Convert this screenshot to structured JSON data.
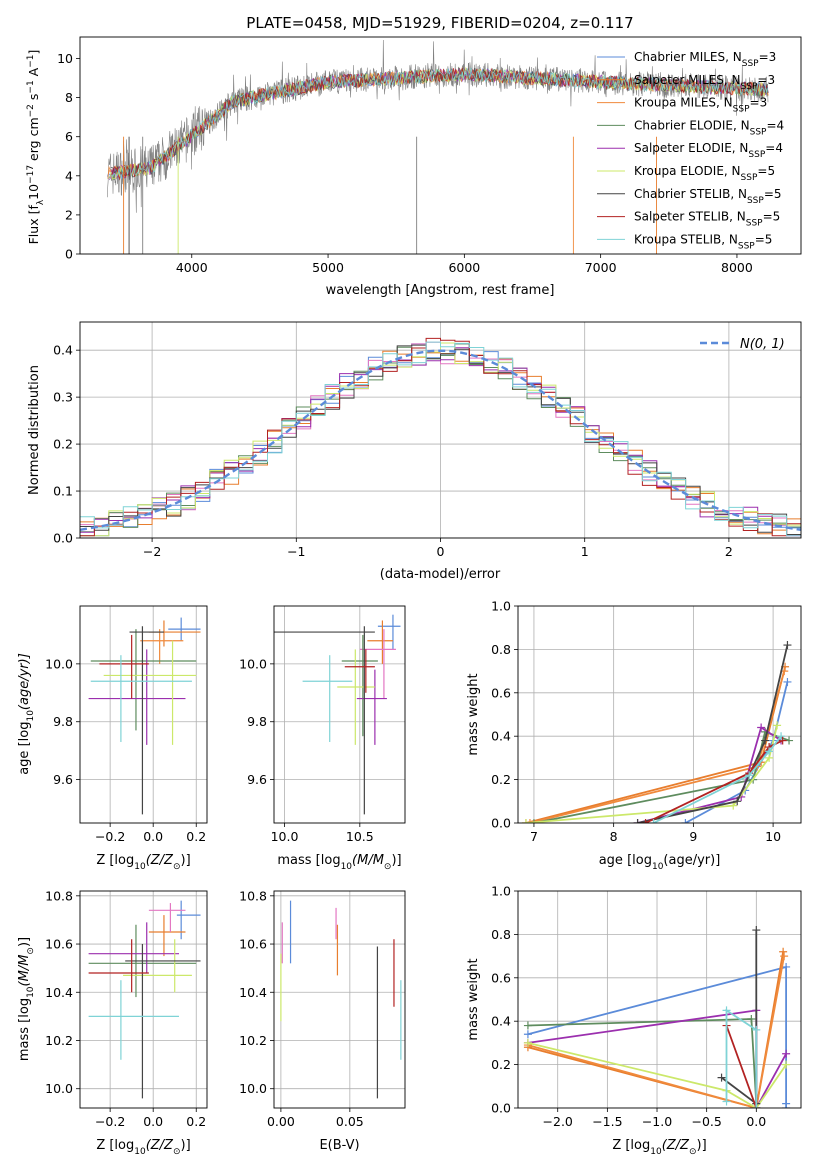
{
  "colors": {
    "c_mil": "#5b8bd9",
    "s_mil": "#e87e2e",
    "k_mil": "#f08a3c",
    "c_eld": "#5e8c5e",
    "s_eld": "#9b2fae",
    "k_eld": "#cce86a",
    "c_ste": "#444444",
    "s_ste": "#b22222",
    "k_ste": "#7fd3d6",
    "pink": "#e377c2",
    "grey": "#808080"
  },
  "chart_data": [
    {
      "id": "spectrum",
      "type": "line",
      "title": "PLATE=0458, MJD=51929, FIBERID=0204, z=0.117",
      "xlabel": "wavelength [Angstrom, rest frame]",
      "ylabel_main": "Flux [f",
      "ylabel_sub1": "λ",
      "ylabel_mid": "10",
      "ylabel_sup1": "−17",
      "ylabel_rest": " erg cm",
      "ylabel_sup2": "−2",
      "ylabel_s": " s",
      "ylabel_sup3": "−1",
      "ylabel_a": " A",
      "ylabel_sup4": "−1",
      "ylabel_end": "]",
      "xlim": [
        3180,
        8470
      ],
      "ylim": [
        0,
        11.1
      ],
      "xticks": [
        4000,
        5000,
        6000,
        7000,
        8000
      ],
      "yticks": [
        0,
        2,
        4,
        6,
        8,
        10
      ],
      "x_range": [
        3380,
        8230
      ],
      "legend": [
        {
          "label": "Chabrier MILES, N",
          "sub": "SSP",
          "tail": "=3",
          "color_key": "c_mil"
        },
        {
          "label": "Salpeter MILES, N",
          "sub": "SSP",
          "tail": "=3",
          "color_key": "s_mil"
        },
        {
          "label": "Kroupa MILES, N",
          "sub": "SSP",
          "tail": "=3",
          "color_key": "k_mil"
        },
        {
          "label": "Chabrier ELODIE, N",
          "sub": "SSP",
          "tail": "=4",
          "color_key": "c_eld"
        },
        {
          "label": "Salpeter ELODIE, N",
          "sub": "SSP",
          "tail": "=4",
          "color_key": "s_eld"
        },
        {
          "label": "Kroupa ELODIE, N",
          "sub": "SSP",
          "tail": "=5",
          "color_key": "k_eld"
        },
        {
          "label": "Chabrier STELIB, N",
          "sub": "SSP",
          "tail": "=5",
          "color_key": "c_ste"
        },
        {
          "label": "Salpeter STELIB, N",
          "sub": "SSP",
          "tail": "=5",
          "color_key": "s_ste"
        },
        {
          "label": "Kroupa STELIB, N",
          "sub": "SSP",
          "tail": "=5",
          "color_key": "k_ste"
        }
      ]
    },
    {
      "id": "residuals",
      "type": "line",
      "xlabel": "(data-model)/error",
      "ylabel": "Normed distribution",
      "xlim": [
        -2.5,
        2.5
      ],
      "ylim": [
        0,
        0.46
      ],
      "xticks": [
        -2,
        -1,
        0,
        1,
        2
      ],
      "xtick_labels": [
        "−2",
        "−1",
        "0",
        "1",
        "2"
      ],
      "yticks": [
        0.0,
        0.1,
        0.2,
        0.3,
        0.4
      ],
      "ytick_labels": [
        "0.0",
        "0.1",
        "0.2",
        "0.3",
        "0.4"
      ],
      "grid": true,
      "bin_width": 0.1,
      "legend_label": "N(0, 1)",
      "legend_position": "top-right"
    },
    {
      "id": "z_age",
      "type": "scatter",
      "xlabel_main": "Z [log",
      "xlabel_sub": "10",
      "xlabel_mid": "(Z/Z",
      "xlabel_sub2": "⊙",
      "xlabel_end": ")]",
      "ylabel_main": "age  [log",
      "ylabel_sub": "10",
      "ylabel_end": "(age/yr)]",
      "xlim": [
        -0.34,
        0.25
      ],
      "ylim": [
        9.45,
        10.2
      ],
      "xticks": [
        -0.2,
        0.0,
        0.2
      ],
      "xtick_labels": [
        "−0.2",
        "0.0",
        "0.2"
      ],
      "yticks": [
        9.6,
        9.8,
        10.0
      ],
      "ytick_labels": [
        "9.6",
        "9.8",
        "10.0"
      ],
      "grid": true,
      "points": [
        {
          "x": 0.13,
          "xe": [
            0.07,
            0.22
          ],
          "y": 10.12,
          "ye": [
            10.08,
            10.16
          ],
          "color_key": "c_mil"
        },
        {
          "x": 0.05,
          "xe": [
            -0.02,
            0.22
          ],
          "y": 10.11,
          "ye": [
            10.06,
            10.15
          ],
          "color_key": "s_mil"
        },
        {
          "x": 0.03,
          "xe": [
            -0.06,
            0.14
          ],
          "y": 10.08,
          "ye": [
            10.0,
            10.12
          ],
          "color_key": "k_mil"
        },
        {
          "x": -0.08,
          "xe": [
            -0.29,
            0.2
          ],
          "y": 10.01,
          "ye": [
            9.77,
            10.12
          ],
          "color_key": "c_eld"
        },
        {
          "x": -0.03,
          "xe": [
            -0.3,
            0.15
          ],
          "y": 9.88,
          "ye": [
            9.72,
            10.05
          ],
          "color_key": "s_eld"
        },
        {
          "x": 0.09,
          "xe": [
            -0.23,
            0.2
          ],
          "y": 9.96,
          "ye": [
            9.72,
            10.08
          ],
          "color_key": "k_eld"
        },
        {
          "x": -0.05,
          "xe": [
            -0.11,
            0.05
          ],
          "y": 10.11,
          "ye": [
            9.48,
            10.13
          ],
          "color_key": "c_ste"
        },
        {
          "x": -0.1,
          "xe": [
            -0.25,
            -0.02
          ],
          "y": 10.0,
          "ye": [
            9.88,
            10.1
          ],
          "color_key": "s_ste"
        },
        {
          "x": -0.15,
          "xe": [
            -0.29,
            0.18
          ],
          "y": 9.94,
          "ye": [
            9.73,
            10.03
          ],
          "color_key": "k_ste"
        }
      ]
    },
    {
      "id": "mass_age",
      "type": "scatter",
      "xlabel_main": "mass [log",
      "xlabel_sub": "10",
      "xlabel_mid": "(M/M",
      "xlabel_sub2": "⊙",
      "xlabel_end": ")]",
      "xlim": [
        9.93,
        10.8
      ],
      "ylim": [
        9.45,
        10.2
      ],
      "xticks": [
        10.0,
        10.5
      ],
      "xtick_labels": [
        "10.0",
        "10.5"
      ],
      "yticks": [
        9.6,
        9.8,
        10.0
      ],
      "ytick_labels": [
        "9.6",
        "9.8",
        "10.0"
      ],
      "grid": true,
      "points": [
        {
          "x": 10.72,
          "xe": [
            10.62,
            10.77
          ],
          "y": 10.13,
          "ye": [
            10.05,
            10.17
          ],
          "color_key": "c_mil"
        },
        {
          "x": 10.65,
          "xe": [
            10.55,
            10.72
          ],
          "y": 10.08,
          "ye": [
            10.0,
            10.15
          ],
          "color_key": "s_mil"
        },
        {
          "x": 10.66,
          "xe": [
            10.5,
            10.74
          ],
          "y": 10.05,
          "ye": [
            9.88,
            10.12
          ],
          "color_key": "pink"
        },
        {
          "x": 10.52,
          "xe": [
            10.38,
            10.62
          ],
          "y": 10.01,
          "ye": [
            9.75,
            10.1
          ],
          "color_key": "c_eld"
        },
        {
          "x": 10.6,
          "xe": [
            10.48,
            10.68
          ],
          "y": 9.88,
          "ye": [
            9.72,
            9.98
          ],
          "color_key": "s_eld"
        },
        {
          "x": 10.47,
          "xe": [
            10.35,
            10.6
          ],
          "y": 9.92,
          "ye": [
            9.72,
            10.05
          ],
          "color_key": "k_eld"
        },
        {
          "x": 10.53,
          "xe": [
            9.93,
            10.6
          ],
          "y": 10.11,
          "ye": [
            9.48,
            10.13
          ],
          "color_key": "c_ste"
        },
        {
          "x": 10.54,
          "xe": [
            10.4,
            10.6
          ],
          "y": 9.99,
          "ye": [
            9.9,
            10.05
          ],
          "color_key": "s_ste"
        },
        {
          "x": 10.3,
          "xe": [
            10.12,
            10.45
          ],
          "y": 9.94,
          "ye": [
            9.73,
            10.03
          ],
          "color_key": "k_ste"
        }
      ]
    },
    {
      "id": "age_weight",
      "type": "line",
      "xlabel_main": "age  [log",
      "xlabel_sub": "10",
      "xlabel_end": "(age/yr)]",
      "ylabel": "mass weight",
      "xlim": [
        6.8,
        10.35
      ],
      "ylim": [
        0,
        1.0
      ],
      "xticks": [
        7,
        8,
        9,
        10
      ],
      "xtick_labels": [
        "7",
        "8",
        "9",
        "10"
      ],
      "yticks": [
        0.0,
        0.2,
        0.4,
        0.6,
        0.8,
        1.0
      ],
      "ytick_labels": [
        "0.0",
        "0.2",
        "0.4",
        "0.6",
        "0.8",
        "1.0"
      ],
      "grid": true,
      "series": [
        {
          "color_key": "c_mil",
          "x": [
            8.9,
            9.65,
            10.0,
            10.18
          ],
          "y": [
            0.0,
            0.15,
            0.38,
            0.65
          ]
        },
        {
          "color_key": "s_mil",
          "x": [
            6.9,
            9.85,
            10.15
          ],
          "y": [
            0.0,
            0.28,
            0.72
          ]
        },
        {
          "color_key": "k_mil",
          "x": [
            6.95,
            9.8,
            10.14
          ],
          "y": [
            0.0,
            0.26,
            0.7
          ]
        },
        {
          "color_key": "c_eld",
          "x": [
            7.0,
            9.75,
            9.9,
            10.2
          ],
          "y": [
            0.0,
            0.2,
            0.42,
            0.38
          ]
        },
        {
          "color_key": "s_eld",
          "x": [
            8.3,
            9.6,
            9.85,
            10.1
          ],
          "y": [
            0.0,
            0.12,
            0.44,
            0.38
          ]
        },
        {
          "color_key": "k_eld",
          "x": [
            6.9,
            9.5,
            9.95,
            10.05
          ],
          "y": [
            0.0,
            0.08,
            0.3,
            0.45
          ]
        },
        {
          "color_key": "c_ste",
          "x": [
            8.3,
            9.55,
            9.9,
            10.18
          ],
          "y": [
            0.0,
            0.1,
            0.38,
            0.82
          ]
        },
        {
          "color_key": "s_ste",
          "x": [
            8.4,
            9.7,
            9.95,
            10.12
          ],
          "y": [
            0.0,
            0.23,
            0.35,
            0.38
          ]
        },
        {
          "color_key": "k_ste",
          "x": [
            8.5,
            9.7,
            9.95,
            10.1
          ],
          "y": [
            0.0,
            0.22,
            0.33,
            0.4
          ]
        }
      ]
    },
    {
      "id": "z_mass",
      "type": "scatter",
      "xlabel_main": "Z [log",
      "xlabel_sub": "10",
      "xlabel_mid": "(Z/Z",
      "xlabel_sub2": "⊙",
      "xlabel_end": ")]",
      "ylabel_main": "mass [log",
      "ylabel_sub": "10",
      "ylabel_mid": "(M/M",
      "ylabel_sub2": "⊙",
      "ylabel_end": ")]",
      "xlim": [
        -0.34,
        0.25
      ],
      "ylim": [
        9.92,
        10.82
      ],
      "xticks": [
        -0.2,
        0.0,
        0.2
      ],
      "xtick_labels": [
        "−0.2",
        "0.0",
        "0.2"
      ],
      "yticks": [
        10.0,
        10.2,
        10.4,
        10.6,
        10.8
      ],
      "ytick_labels": [
        "10.0",
        "10.2",
        "10.4",
        "10.6",
        "10.8"
      ],
      "grid": true,
      "points": [
        {
          "x": 0.13,
          "xe": [
            0.11,
            0.22
          ],
          "y": 10.72,
          "ye": [
            10.62,
            10.78
          ],
          "color_key": "c_mil"
        },
        {
          "x": 0.05,
          "xe": [
            -0.02,
            0.15
          ],
          "y": 10.65,
          "ye": [
            10.55,
            10.72
          ],
          "color_key": "s_mil"
        },
        {
          "x": 0.08,
          "xe": [
            -0.02,
            0.15
          ],
          "y": 10.74,
          "ye": [
            10.65,
            10.77
          ],
          "color_key": "pink"
        },
        {
          "x": -0.08,
          "xe": [
            -0.3,
            0.2
          ],
          "y": 10.52,
          "ye": [
            10.38,
            10.68
          ],
          "color_key": "c_eld"
        },
        {
          "x": -0.03,
          "xe": [
            -0.3,
            0.12
          ],
          "y": 10.56,
          "ye": [
            10.48,
            10.69
          ],
          "color_key": "s_eld"
        },
        {
          "x": 0.1,
          "xe": [
            -0.14,
            0.18
          ],
          "y": 10.47,
          "ye": [
            10.4,
            10.62
          ],
          "color_key": "k_eld"
        },
        {
          "x": -0.05,
          "xe": [
            -0.13,
            0.22
          ],
          "y": 10.53,
          "ye": [
            9.96,
            10.6
          ],
          "color_key": "c_ste"
        },
        {
          "x": -0.1,
          "xe": [
            -0.3,
            -0.02
          ],
          "y": 10.48,
          "ye": [
            10.4,
            10.62
          ],
          "color_key": "s_ste"
        },
        {
          "x": -0.15,
          "xe": [
            -0.3,
            0.12
          ],
          "y": 10.3,
          "ye": [
            10.12,
            10.45
          ],
          "color_key": "k_ste"
        }
      ]
    },
    {
      "id": "ebv_mass",
      "type": "scatter",
      "xlabel": "E(B-V)",
      "xlim": [
        -0.005,
        0.09
      ],
      "ylim": [
        9.92,
        10.82
      ],
      "xticks": [
        0.0,
        0.05
      ],
      "xtick_labels": [
        "0.00",
        "0.05"
      ],
      "yticks": [
        10.0,
        10.2,
        10.4,
        10.6,
        10.8
      ],
      "ytick_labels": [
        "10.0",
        "10.2",
        "10.4",
        "10.6",
        "10.8"
      ],
      "grid": true,
      "points": [
        {
          "x": 0.007,
          "y": 10.65,
          "ye": [
            10.52,
            10.78
          ],
          "color_key": "c_mil"
        },
        {
          "x": 0.041,
          "y": 10.58,
          "ye": [
            10.47,
            10.68
          ],
          "color_key": "s_mil"
        },
        {
          "x": 0.001,
          "y": 10.62,
          "ye": [
            10.52,
            10.69
          ],
          "color_key": "pink"
        },
        {
          "x": 0.0,
          "y": 10.5,
          "ye": [
            10.28,
            10.56
          ],
          "color_key": "k_eld"
        },
        {
          "x": 0.04,
          "y": 10.72,
          "ye": [
            10.62,
            10.75
          ],
          "color_key": "pink"
        },
        {
          "x": 0.07,
          "y": 10.3,
          "ye": [
            9.96,
            10.59
          ],
          "color_key": "c_ste"
        },
        {
          "x": 0.082,
          "y": 10.45,
          "ye": [
            10.34,
            10.62
          ],
          "color_key": "s_ste"
        },
        {
          "x": 0.087,
          "y": 10.3,
          "ye": [
            10.12,
            10.45
          ],
          "color_key": "k_ste"
        }
      ]
    },
    {
      "id": "z_weight",
      "type": "line",
      "xlabel_main": "Z [log",
      "xlabel_sub": "10",
      "xlabel_mid": "(Z/Z",
      "xlabel_sub2": "⊙",
      "xlabel_end": ")]",
      "ylabel": "mass weight",
      "xlim": [
        -2.4,
        0.45
      ],
      "ylim": [
        0,
        1.0
      ],
      "xticks": [
        -2.0,
        -1.5,
        -1.0,
        -0.5,
        0.0
      ],
      "xtick_labels": [
        "−2.0",
        "−1.5",
        "−1.0",
        "−0.5",
        "0.0"
      ],
      "yticks": [
        0.0,
        0.2,
        0.4,
        0.6,
        0.8,
        1.0
      ],
      "ytick_labels": [
        "0.0",
        "0.2",
        "0.4",
        "0.6",
        "0.8",
        "1.0"
      ],
      "grid": true,
      "series": [
        {
          "color_key": "c_mil",
          "x": [
            -2.3,
            0.3,
            0.3,
            0.3
          ],
          "y": [
            0.34,
            0.65,
            0.0,
            0.02
          ]
        },
        {
          "color_key": "s_mil",
          "x": [
            -2.3,
            0.0,
            0.27
          ],
          "y": [
            0.28,
            0.0,
            0.72
          ]
        },
        {
          "color_key": "k_mil",
          "x": [
            -2.3,
            0.0,
            0.28
          ],
          "y": [
            0.29,
            0.0,
            0.7
          ]
        },
        {
          "color_key": "c_eld",
          "x": [
            -2.3,
            -0.05,
            0.0
          ],
          "y": [
            0.38,
            0.41,
            0.02
          ]
        },
        {
          "color_key": "s_eld",
          "x": [
            -2.3,
            0.0,
            0.0,
            0.3
          ],
          "y": [
            0.3,
            0.45,
            0.0,
            0.25
          ]
        },
        {
          "color_key": "k_eld",
          "x": [
            -2.3,
            -0.3,
            0.0,
            0.3
          ],
          "y": [
            0.3,
            0.08,
            0.0,
            0.2
          ]
        },
        {
          "color_key": "c_ste",
          "x": [
            -0.35,
            0.0,
            0.0
          ],
          "y": [
            0.14,
            0.02,
            0.82
          ]
        },
        {
          "color_key": "s_ste",
          "x": [
            -0.3,
            0.0
          ],
          "y": [
            0.38,
            0.0
          ]
        },
        {
          "color_key": "k_ste",
          "x": [
            -0.3,
            -0.3,
            0.0,
            0.0
          ],
          "y": [
            0.03,
            0.45,
            0.36,
            0.0
          ]
        }
      ]
    }
  ]
}
